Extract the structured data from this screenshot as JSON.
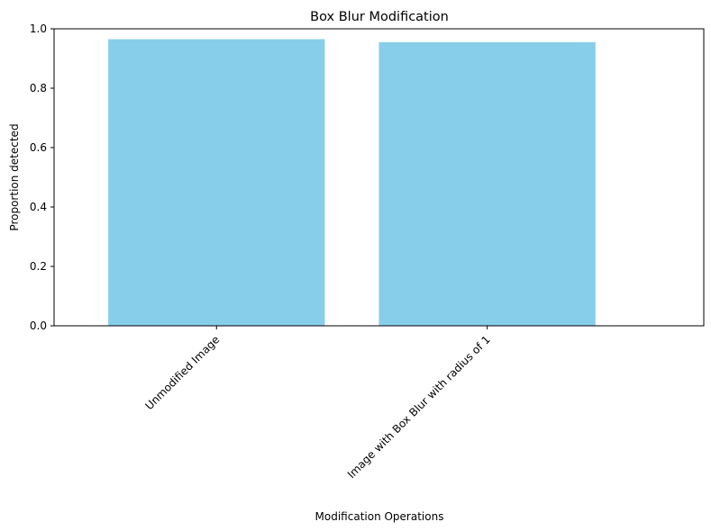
{
  "chart_data": {
    "type": "bar",
    "title": "Box Blur Modification",
    "xlabel": "Modification Operations",
    "ylabel": "Proportion detected",
    "categories": [
      "Unmodified Image",
      "Image with Box Blur with radius of 1"
    ],
    "values": [
      0.965,
      0.955
    ],
    "ylim": [
      0,
      1.0
    ],
    "yticks": [
      0.0,
      0.2,
      0.4,
      0.6,
      0.8,
      1.0
    ],
    "ytick_labels": [
      "0.0",
      "0.2",
      "0.4",
      "0.6",
      "0.8",
      "1.0"
    ],
    "bar_color": "#87ceeb",
    "grid": false,
    "legend": "none"
  }
}
